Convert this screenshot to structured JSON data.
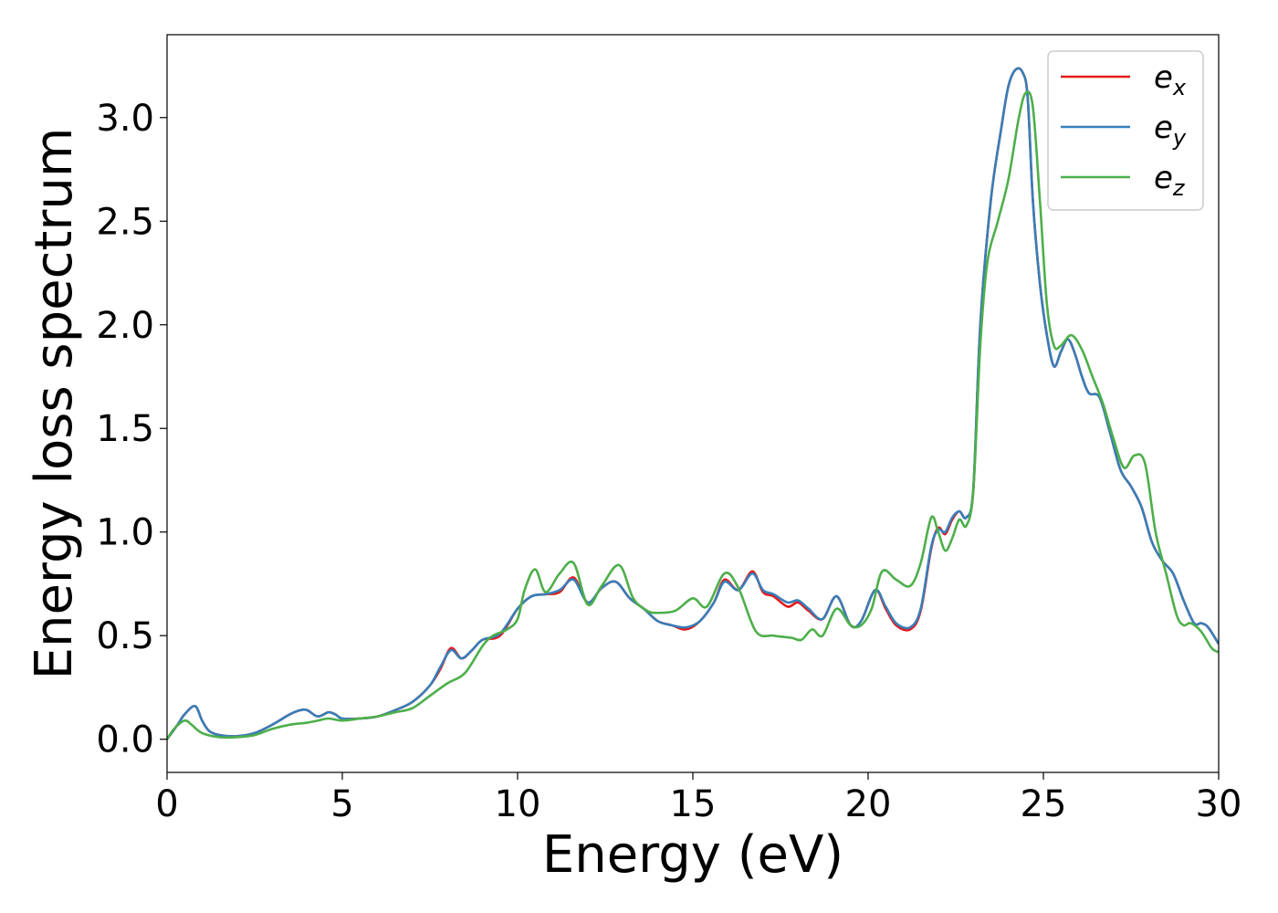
{
  "chart_data": {
    "type": "line",
    "title": "",
    "xlabel": "Energy (eV)",
    "ylabel": "Energy loss spectrum",
    "xlim": [
      0,
      30
    ],
    "ylim": [
      -0.16,
      3.4
    ],
    "xticks": [
      0,
      5,
      10,
      15,
      20,
      25,
      30
    ],
    "xtick_labels": [
      "0",
      "5",
      "10",
      "15",
      "20",
      "25",
      "30"
    ],
    "yticks": [
      0.0,
      0.5,
      1.0,
      1.5,
      2.0,
      2.5,
      3.0
    ],
    "ytick_labels": [
      "0.0",
      "0.5",
      "1.0",
      "1.5",
      "2.0",
      "2.5",
      "3.0"
    ],
    "grid": false,
    "legend_position": "top-right",
    "series": [
      {
        "name": "e_x",
        "legend_base": "e",
        "legend_sub": "x",
        "color": "#e41a1c",
        "x": [
          0,
          0.3,
          0.5,
          0.8,
          1.0,
          1.2,
          1.5,
          2.0,
          2.5,
          3.0,
          3.5,
          3.8,
          4.0,
          4.3,
          4.6,
          4.8,
          5.0,
          5.5,
          6.0,
          6.5,
          7.0,
          7.5,
          7.8,
          8.1,
          8.4,
          8.7,
          9.0,
          9.5,
          10.0,
          10.4,
          10.8,
          11.2,
          11.6,
          12.0,
          12.4,
          12.8,
          13.2,
          13.6,
          14.0,
          14.4,
          14.8,
          15.2,
          15.6,
          15.9,
          16.3,
          16.7,
          17.0,
          17.3,
          17.7,
          18.0,
          18.3,
          18.7,
          19.1,
          19.5,
          19.8,
          20.2,
          20.5,
          20.8,
          21.2,
          21.5,
          21.8,
          22.0,
          22.2,
          22.4,
          22.6,
          22.8,
          23.0,
          23.2,
          23.5,
          23.8,
          24.0,
          24.2,
          24.4,
          24.55,
          24.7,
          24.9,
          25.1,
          25.3,
          25.5,
          25.7,
          25.9,
          26.1,
          26.3,
          26.6,
          26.9,
          27.2,
          27.5,
          27.8,
          28.1,
          28.4,
          28.7,
          29.0,
          29.3,
          29.5,
          29.7,
          30.0
        ],
        "values": [
          0.0,
          0.07,
          0.12,
          0.16,
          0.09,
          0.04,
          0.02,
          0.015,
          0.03,
          0.07,
          0.12,
          0.14,
          0.14,
          0.11,
          0.13,
          0.12,
          0.1,
          0.1,
          0.11,
          0.14,
          0.18,
          0.26,
          0.34,
          0.44,
          0.39,
          0.43,
          0.48,
          0.5,
          0.63,
          0.69,
          0.7,
          0.71,
          0.78,
          0.66,
          0.73,
          0.76,
          0.68,
          0.63,
          0.57,
          0.55,
          0.53,
          0.57,
          0.66,
          0.77,
          0.72,
          0.81,
          0.71,
          0.69,
          0.64,
          0.66,
          0.62,
          0.58,
          0.69,
          0.55,
          0.57,
          0.72,
          0.63,
          0.55,
          0.53,
          0.62,
          0.92,
          1.02,
          0.99,
          1.06,
          1.1,
          1.07,
          1.2,
          2.0,
          2.6,
          2.95,
          3.15,
          3.23,
          3.22,
          3.1,
          2.6,
          2.2,
          1.95,
          1.8,
          1.87,
          1.93,
          1.86,
          1.75,
          1.67,
          1.65,
          1.48,
          1.3,
          1.22,
          1.12,
          0.95,
          0.86,
          0.8,
          0.67,
          0.56,
          0.56,
          0.54,
          0.46
        ]
      },
      {
        "name": "e_y",
        "legend_base": "e",
        "legend_sub": "y",
        "color": "#377eb8",
        "x": [
          0,
          0.3,
          0.5,
          0.8,
          1.0,
          1.2,
          1.5,
          2.0,
          2.5,
          3.0,
          3.5,
          3.8,
          4.0,
          4.3,
          4.6,
          4.8,
          5.0,
          5.5,
          6.0,
          6.5,
          7.0,
          7.5,
          7.8,
          8.1,
          8.4,
          8.7,
          9.0,
          9.5,
          10.0,
          10.4,
          10.8,
          11.2,
          11.6,
          12.0,
          12.4,
          12.8,
          13.2,
          13.6,
          14.0,
          14.4,
          14.8,
          15.2,
          15.6,
          15.9,
          16.3,
          16.7,
          17.0,
          17.3,
          17.7,
          18.0,
          18.3,
          18.7,
          19.1,
          19.5,
          19.8,
          20.2,
          20.5,
          20.8,
          21.2,
          21.5,
          21.8,
          22.0,
          22.2,
          22.4,
          22.6,
          22.8,
          23.0,
          23.2,
          23.5,
          23.8,
          24.0,
          24.2,
          24.4,
          24.55,
          24.7,
          24.9,
          25.1,
          25.3,
          25.5,
          25.7,
          25.9,
          26.1,
          26.3,
          26.6,
          26.9,
          27.2,
          27.5,
          27.8,
          28.1,
          28.4,
          28.7,
          29.0,
          29.3,
          29.5,
          29.7,
          30.0
        ],
        "values": [
          0.0,
          0.07,
          0.12,
          0.16,
          0.09,
          0.04,
          0.02,
          0.015,
          0.03,
          0.07,
          0.12,
          0.14,
          0.14,
          0.11,
          0.13,
          0.12,
          0.1,
          0.1,
          0.11,
          0.14,
          0.18,
          0.26,
          0.35,
          0.43,
          0.39,
          0.43,
          0.48,
          0.51,
          0.63,
          0.69,
          0.7,
          0.72,
          0.77,
          0.66,
          0.73,
          0.76,
          0.68,
          0.63,
          0.57,
          0.55,
          0.54,
          0.57,
          0.66,
          0.76,
          0.72,
          0.8,
          0.72,
          0.7,
          0.66,
          0.67,
          0.63,
          0.58,
          0.69,
          0.55,
          0.57,
          0.72,
          0.64,
          0.56,
          0.54,
          0.63,
          0.93,
          1.01,
          1.0,
          1.07,
          1.1,
          1.07,
          1.21,
          2.0,
          2.6,
          2.95,
          3.15,
          3.23,
          3.22,
          3.1,
          2.6,
          2.2,
          1.95,
          1.8,
          1.87,
          1.93,
          1.86,
          1.75,
          1.67,
          1.65,
          1.48,
          1.3,
          1.22,
          1.12,
          0.95,
          0.86,
          0.8,
          0.67,
          0.56,
          0.56,
          0.54,
          0.46
        ]
      },
      {
        "name": "e_z",
        "legend_base": "e",
        "legend_sub": "z",
        "color": "#4daf4a",
        "x": [
          0,
          0.2,
          0.5,
          0.7,
          1.0,
          1.5,
          2.0,
          2.5,
          3.0,
          3.5,
          4.0,
          4.3,
          4.6,
          5.0,
          5.5,
          6.0,
          6.5,
          7.0,
          7.5,
          8.0,
          8.5,
          9.0,
          9.3,
          9.7,
          10.0,
          10.2,
          10.5,
          10.8,
          11.2,
          11.6,
          12.0,
          12.4,
          12.9,
          13.3,
          13.7,
          14.0,
          14.5,
          15.0,
          15.4,
          15.9,
          16.3,
          16.8,
          17.3,
          17.8,
          18.1,
          18.4,
          18.7,
          19.1,
          19.5,
          19.8,
          20.1,
          20.4,
          20.8,
          21.2,
          21.5,
          21.8,
          22.0,
          22.2,
          22.4,
          22.6,
          22.8,
          23.0,
          23.2,
          23.4,
          23.7,
          24.0,
          24.3,
          24.5,
          24.7,
          24.9,
          25.1,
          25.3,
          25.5,
          25.8,
          26.1,
          26.4,
          26.7,
          27.0,
          27.3,
          27.6,
          27.9,
          28.2,
          28.5,
          28.8,
          29.0,
          29.2,
          29.5,
          29.8,
          30.0
        ],
        "values": [
          0.0,
          0.05,
          0.09,
          0.07,
          0.03,
          0.01,
          0.01,
          0.02,
          0.05,
          0.07,
          0.08,
          0.09,
          0.1,
          0.09,
          0.1,
          0.11,
          0.13,
          0.15,
          0.21,
          0.27,
          0.32,
          0.45,
          0.5,
          0.53,
          0.58,
          0.72,
          0.82,
          0.71,
          0.8,
          0.85,
          0.65,
          0.74,
          0.84,
          0.68,
          0.62,
          0.61,
          0.62,
          0.68,
          0.64,
          0.8,
          0.73,
          0.52,
          0.5,
          0.49,
          0.48,
          0.53,
          0.5,
          0.63,
          0.55,
          0.55,
          0.63,
          0.81,
          0.77,
          0.74,
          0.85,
          1.07,
          1.0,
          0.91,
          0.97,
          1.06,
          1.03,
          1.2,
          1.9,
          2.3,
          2.5,
          2.7,
          3.0,
          3.12,
          3.05,
          2.6,
          2.1,
          1.9,
          1.9,
          1.95,
          1.88,
          1.75,
          1.62,
          1.45,
          1.31,
          1.37,
          1.33,
          1.0,
          0.8,
          0.6,
          0.55,
          0.56,
          0.52,
          0.44,
          0.42
        ]
      }
    ]
  }
}
